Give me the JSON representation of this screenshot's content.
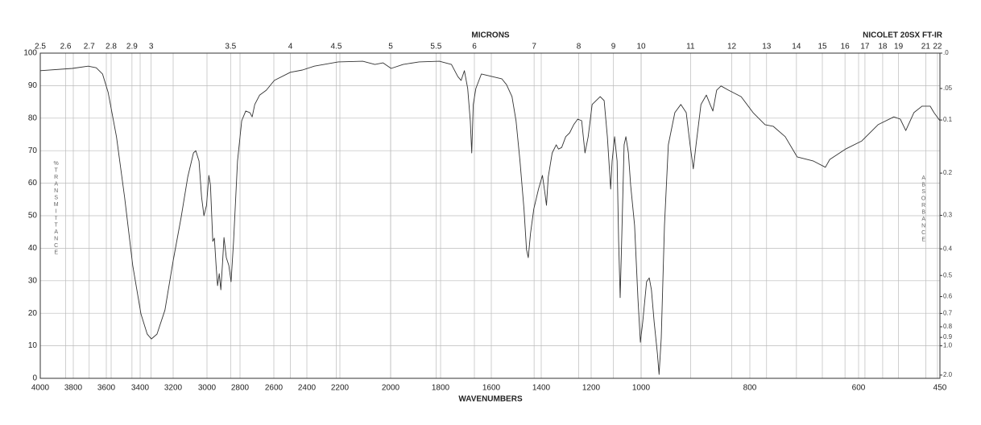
{
  "chart_data": {
    "type": "line",
    "title": "MICRONS",
    "brand": "NICOLET 20SX FT-IR",
    "xlabel": "WAVENUMBERS",
    "ylabel": "%TRANSMITTANCE",
    "y2label": "ABSORBANCE",
    "color": "#333333",
    "grid": true,
    "xlim": [
      4000,
      450
    ],
    "xticks": [
      4000,
      3800,
      3600,
      3400,
      3200,
      3000,
      2800,
      2600,
      2400,
      2200,
      2000,
      1800,
      1600,
      1400,
      1200,
      1000,
      800,
      600,
      450
    ],
    "micron_ticks": [
      2.5,
      2.6,
      2.7,
      2.8,
      2.9,
      3,
      3.5,
      4,
      4.5,
      5,
      5.5,
      6,
      7,
      8,
      9,
      10,
      11,
      12,
      13,
      14,
      15,
      16,
      17,
      18,
      19,
      21,
      22
    ],
    "ylim": [
      0,
      100
    ],
    "yticks": [
      0,
      10,
      20,
      30,
      40,
      50,
      60,
      70,
      80,
      90,
      100
    ],
    "y2lim": [
      0,
      2
    ],
    "y2ticks": [
      {
        "value": 0,
        "label": ".0"
      },
      {
        "value": 0.05,
        "label": ".05"
      },
      0.1,
      0.2,
      0.3,
      0.4,
      0.5,
      0.6,
      0.7,
      0.8,
      0.9,
      {
        "value": 1,
        "label": "1.0"
      },
      {
        "value": 2,
        "label": "2.0"
      }
    ],
    "x": [
      4000,
      3806,
      3710,
      3661,
      3623,
      3589,
      3540,
      3492,
      3444,
      3395,
      3357,
      3332,
      3298,
      3250,
      3201,
      3153,
      3114,
      3080,
      3066,
      3047,
      3032,
      3018,
      3003,
      2989,
      2979,
      2965,
      2955,
      2945,
      2936,
      2926,
      2916,
      2907,
      2897,
      2883,
      2868,
      2854,
      2839,
      2815,
      2790,
      2766,
      2742,
      2728,
      2713,
      2684,
      2645,
      2597,
      2500,
      2427,
      2355,
      2210,
      2110,
      2062,
      2030,
      1998,
      1950,
      1886,
      1805,
      1757,
      1732,
      1719,
      1706,
      1693,
      1683,
      1677,
      1671,
      1661,
      1639,
      1597,
      1558,
      1539,
      1517,
      1501,
      1485,
      1469,
      1459,
      1452,
      1443,
      1430,
      1411,
      1395,
      1385,
      1379,
      1372,
      1356,
      1340,
      1331,
      1318,
      1302,
      1286,
      1270,
      1254,
      1238,
      1225,
      1212,
      1196,
      1164,
      1148,
      1135,
      1122,
      1116,
      1106,
      1096,
      1090,
      1084,
      1077,
      1068,
      1061,
      1051,
      1042,
      1026,
      1013,
      1003,
      997,
      990,
      985,
      981,
      976,
      970,
      967,
      963,
      957,
      950,
      938,
      927,
      917,
      910,
      904,
      899,
      890,
      880,
      873,
      868,
      861,
      853,
      839,
      816,
      794,
      772,
      757,
      735,
      713,
      683,
      661,
      653,
      624,
      594,
      564,
      535,
      523,
      513,
      498,
      483,
      468,
      461,
      450
    ],
    "values": [
      94.6,
      95.3,
      96.0,
      95.5,
      93.6,
      87.9,
      74.3,
      55.7,
      34.7,
      19.8,
      13.6,
      12.1,
      13.6,
      21.0,
      35.9,
      49.5,
      61.9,
      69.3,
      70.0,
      66.8,
      55.7,
      50.0,
      53.2,
      62.4,
      59.4,
      42.1,
      43.1,
      34.7,
      28.5,
      32.2,
      27.2,
      34.7,
      43.3,
      37.1,
      34.7,
      29.7,
      42.1,
      66.8,
      79.2,
      82.2,
      81.7,
      80.4,
      84.2,
      87.1,
      88.6,
      91.6,
      94.1,
      94.8,
      96.0,
      97.3,
      97.5,
      96.5,
      97.0,
      95.3,
      96.5,
      97.3,
      97.5,
      96.5,
      92.8,
      91.6,
      94.6,
      89.1,
      79.2,
      69.3,
      84.2,
      89.1,
      93.6,
      92.8,
      92.1,
      90.3,
      86.6,
      79.2,
      66.8,
      52.0,
      39.6,
      37.1,
      44.6,
      52.0,
      58.2,
      62.4,
      56.9,
      53.2,
      61.9,
      69.3,
      71.8,
      70.5,
      71.0,
      74.3,
      75.5,
      78.0,
      79.7,
      79.2,
      69.3,
      74.3,
      84.2,
      86.6,
      85.4,
      74.3,
      58.2,
      66.8,
      74.3,
      66.8,
      42.1,
      24.8,
      44.6,
      71.8,
      74.3,
      69.3,
      59.4,
      47.0,
      24.8,
      11.1,
      17.3,
      29.7,
      30.9,
      27.2,
      17.3,
      7.4,
      1.2,
      12.4,
      47.0,
      71.8,
      81.7,
      84.2,
      81.7,
      71.8,
      64.4,
      71.8,
      84.2,
      87.1,
      84.2,
      82.2,
      88.6,
      89.9,
      88.6,
      86.6,
      81.7,
      78.0,
      77.5,
      74.3,
      68.1,
      66.8,
      64.9,
      67.3,
      70.5,
      73.0,
      78.0,
      80.4,
      79.7,
      76.2,
      81.7,
      83.7,
      83.7,
      81.7,
      79.2
    ]
  }
}
